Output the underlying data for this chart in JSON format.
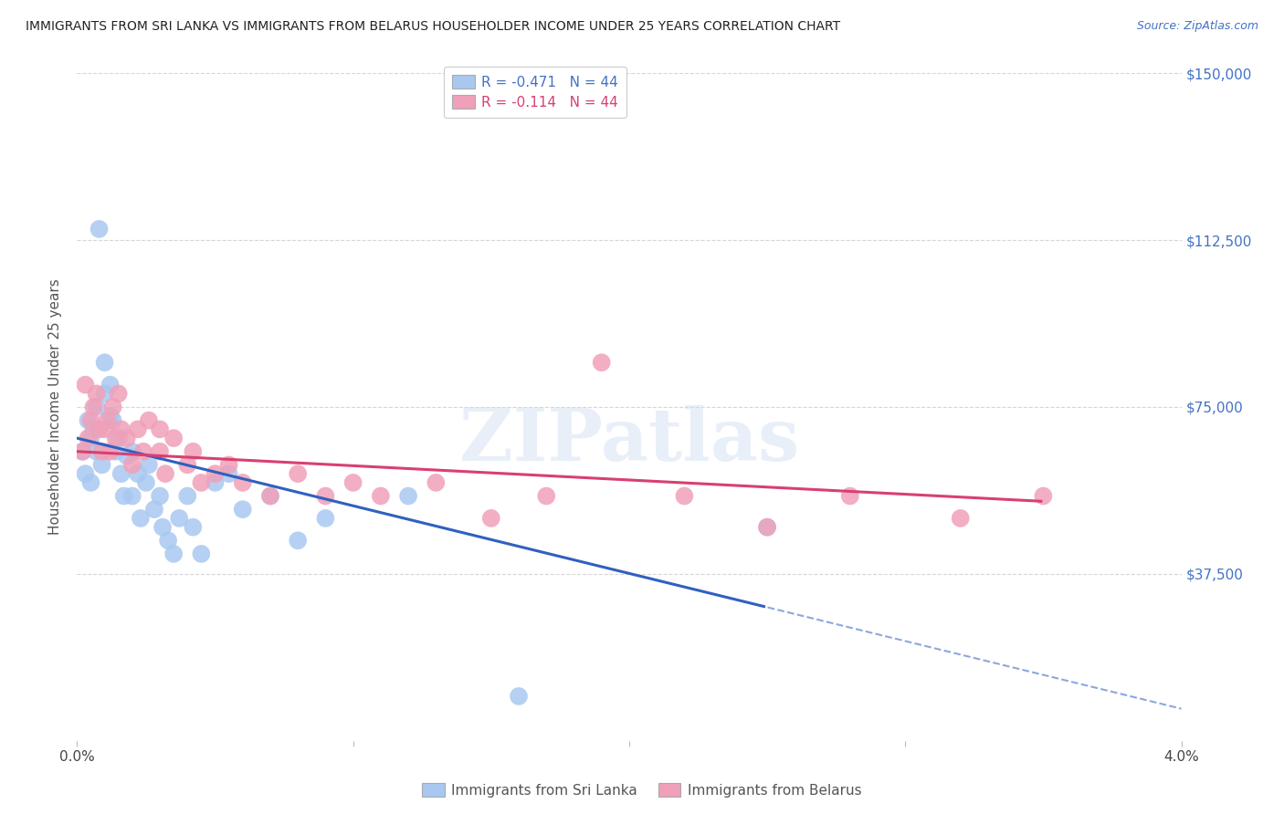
{
  "title": "IMMIGRANTS FROM SRI LANKA VS IMMIGRANTS FROM BELARUS HOUSEHOLDER INCOME UNDER 25 YEARS CORRELATION CHART",
  "source": "Source: ZipAtlas.com",
  "ylabel": "Householder Income Under 25 years",
  "xlim": [
    0.0,
    0.04
  ],
  "ylim": [
    0,
    150000
  ],
  "yticks": [
    0,
    37500,
    75000,
    112500,
    150000
  ],
  "ytick_labels": [
    "",
    "$37,500",
    "$75,000",
    "$112,500",
    "$150,000"
  ],
  "xticks": [
    0.0,
    0.01,
    0.02,
    0.03,
    0.04
  ],
  "xtick_labels": [
    "0.0%",
    "",
    "",
    "",
    "4.0%"
  ],
  "sri_lanka_color": "#a8c8f0",
  "belarus_color": "#f0a0b8",
  "sri_lanka_line_color": "#3060c0",
  "belarus_line_color": "#d84070",
  "sri_lanka_R": -0.471,
  "sri_lanka_N": 44,
  "belarus_R": -0.114,
  "belarus_N": 44,
  "watermark": "ZIPatlas",
  "sri_lanka_x": [
    0.0002,
    0.0003,
    0.0004,
    0.0005,
    0.0005,
    0.0006,
    0.0007,
    0.0007,
    0.0008,
    0.0009,
    0.001,
    0.001,
    0.0012,
    0.0012,
    0.0013,
    0.0014,
    0.0015,
    0.0016,
    0.0017,
    0.0018,
    0.002,
    0.002,
    0.0022,
    0.0023,
    0.0025,
    0.0026,
    0.0028,
    0.003,
    0.0031,
    0.0033,
    0.0035,
    0.0037,
    0.004,
    0.0042,
    0.0045,
    0.005,
    0.0055,
    0.006,
    0.007,
    0.008,
    0.009,
    0.012,
    0.016,
    0.025
  ],
  "sri_lanka_y": [
    65000,
    60000,
    72000,
    68000,
    58000,
    70000,
    65000,
    75000,
    115000,
    62000,
    85000,
    78000,
    80000,
    73000,
    72000,
    65000,
    68000,
    60000,
    55000,
    64000,
    65000,
    55000,
    60000,
    50000,
    58000,
    62000,
    52000,
    55000,
    48000,
    45000,
    42000,
    50000,
    55000,
    48000,
    42000,
    58000,
    60000,
    52000,
    55000,
    45000,
    50000,
    55000,
    10000,
    48000
  ],
  "belarus_x": [
    0.0002,
    0.0003,
    0.0004,
    0.0005,
    0.0006,
    0.0007,
    0.0008,
    0.0009,
    0.001,
    0.0011,
    0.0012,
    0.0013,
    0.0014,
    0.0015,
    0.0016,
    0.0018,
    0.002,
    0.0022,
    0.0024,
    0.0026,
    0.003,
    0.003,
    0.0032,
    0.0035,
    0.004,
    0.0042,
    0.0045,
    0.005,
    0.0055,
    0.006,
    0.007,
    0.008,
    0.009,
    0.01,
    0.011,
    0.013,
    0.015,
    0.017,
    0.019,
    0.022,
    0.025,
    0.028,
    0.032,
    0.035
  ],
  "belarus_y": [
    65000,
    80000,
    68000,
    72000,
    75000,
    78000,
    70000,
    65000,
    70000,
    72000,
    65000,
    75000,
    68000,
    78000,
    70000,
    68000,
    62000,
    70000,
    65000,
    72000,
    70000,
    65000,
    60000,
    68000,
    62000,
    65000,
    58000,
    60000,
    62000,
    58000,
    55000,
    60000,
    55000,
    58000,
    55000,
    58000,
    50000,
    55000,
    85000,
    55000,
    48000,
    55000,
    50000,
    55000
  ]
}
